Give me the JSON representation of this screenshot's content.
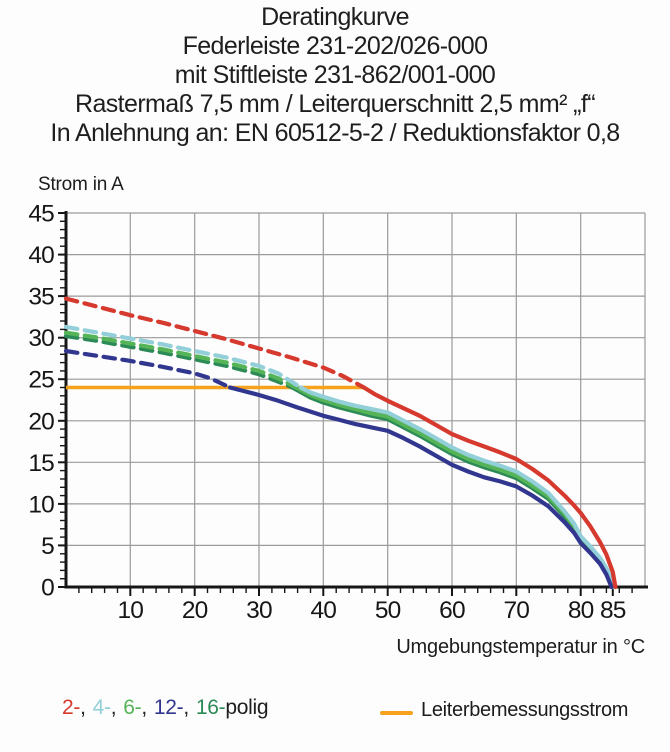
{
  "title": {
    "line1": "Deratingkurve",
    "line2": "Federleiste 231-202/026-000",
    "line3": "mit Stiftleiste 231-862/001-000",
    "line4": "Rastermaß 7,5 mm / Leiterquerschnitt 2,5 mm² „f“",
    "line5": "In Anlehnung an: EN 60512-5-2 / Reduktionsfaktor 0,8"
  },
  "chart_data": {
    "type": "line",
    "title": "Deratingkurve",
    "ylabel": "Strom in A",
    "xlabel": "Umgebungstemperatur in °C",
    "xlim": [
      0,
      90
    ],
    "ylim": [
      0,
      45
    ],
    "x_ticks": [
      10,
      20,
      30,
      40,
      50,
      60,
      70,
      80,
      85
    ],
    "y_ticks": [
      0,
      5,
      10,
      15,
      20,
      25,
      30,
      35,
      40,
      45
    ],
    "x_gridlines": [
      10,
      20,
      30,
      40,
      50,
      60,
      70,
      80,
      90
    ],
    "y_gridlines": [
      5,
      10,
      15,
      20,
      25,
      30,
      35,
      40,
      45
    ],
    "x_minor_step": 2,
    "y_minor_step": 1,
    "grid": true,
    "grid_color": "#9a9a9a",
    "axis_color": "#161616",
    "reference_line": {
      "label": "Leiterbemessungsstrom",
      "value": 24,
      "x_start": 0,
      "x_end": 46.3,
      "color": "#f6a21c"
    },
    "series": [
      {
        "name": "2-polig",
        "color": "#d6392e",
        "dashed": [
          [
            0,
            34.7
          ],
          [
            5,
            33.7
          ],
          [
            10,
            32.7
          ],
          [
            15,
            31.8
          ],
          [
            20,
            30.8
          ],
          [
            25,
            29.8
          ],
          [
            30,
            28.7
          ],
          [
            35,
            27.6
          ],
          [
            40,
            26.4
          ],
          [
            43,
            25.4
          ],
          [
            46.3,
            24.0
          ]
        ],
        "solid": [
          [
            46.3,
            24.0
          ],
          [
            48,
            23.2
          ],
          [
            50,
            22.4
          ],
          [
            52.5,
            21.5
          ],
          [
            55,
            20.6
          ],
          [
            57.5,
            19.5
          ],
          [
            60,
            18.4
          ],
          [
            62.5,
            17.6
          ],
          [
            65,
            16.9
          ],
          [
            67.5,
            16.2
          ],
          [
            70,
            15.4
          ],
          [
            72.5,
            14.2
          ],
          [
            75,
            12.8
          ],
          [
            77.5,
            11.0
          ],
          [
            79,
            9.8
          ],
          [
            80,
            8.9
          ],
          [
            81.5,
            7.3
          ],
          [
            83,
            5.4
          ],
          [
            84,
            3.9
          ],
          [
            85,
            1.8
          ],
          [
            85.4,
            0
          ]
        ]
      },
      {
        "name": "4-polig",
        "color": "#93cfd8",
        "dashed": [
          [
            0,
            31.3
          ],
          [
            5,
            30.6
          ],
          [
            10,
            29.9
          ],
          [
            15,
            29.2
          ],
          [
            20,
            28.4
          ],
          [
            25,
            27.6
          ],
          [
            30,
            26.6
          ],
          [
            33,
            25.7
          ],
          [
            36.5,
            24.0
          ]
        ],
        "solid": [
          [
            36.5,
            24.0
          ],
          [
            38,
            23.4
          ],
          [
            40,
            22.9
          ],
          [
            42.5,
            22.3
          ],
          [
            45,
            21.8
          ],
          [
            47.5,
            21.4
          ],
          [
            50,
            21.0
          ],
          [
            52.5,
            20.0
          ],
          [
            55,
            19.0
          ],
          [
            57.5,
            17.9
          ],
          [
            60,
            16.8
          ],
          [
            62.5,
            15.9
          ],
          [
            65,
            15.2
          ],
          [
            67.5,
            14.6
          ],
          [
            70,
            13.9
          ],
          [
            72.5,
            12.7
          ],
          [
            75,
            11.3
          ],
          [
            77.5,
            9.1
          ],
          [
            79,
            7.6
          ],
          [
            80,
            6.1
          ],
          [
            81.5,
            4.9
          ],
          [
            83,
            3.5
          ],
          [
            84.2,
            2.0
          ],
          [
            85.1,
            0
          ]
        ]
      },
      {
        "name": "6-polig",
        "color": "#55b457",
        "dashed": [
          [
            0,
            30.6
          ],
          [
            5,
            30.0
          ],
          [
            10,
            29.3
          ],
          [
            15,
            28.6
          ],
          [
            20,
            27.8
          ],
          [
            25,
            27.0
          ],
          [
            30,
            26.0
          ],
          [
            33,
            25.1
          ],
          [
            35.8,
            24.0
          ]
        ],
        "solid": [
          [
            35.8,
            24.0
          ],
          [
            38,
            23.1
          ],
          [
            40,
            22.5
          ],
          [
            42.5,
            21.9
          ],
          [
            45,
            21.4
          ],
          [
            47.5,
            20.9
          ],
          [
            50,
            20.5
          ],
          [
            52.5,
            19.5
          ],
          [
            55,
            18.5
          ],
          [
            57.5,
            17.4
          ],
          [
            60,
            16.3
          ],
          [
            62.5,
            15.4
          ],
          [
            65,
            14.7
          ],
          [
            67.5,
            14.1
          ],
          [
            70,
            13.4
          ],
          [
            72.5,
            12.2
          ],
          [
            75,
            10.9
          ],
          [
            77.5,
            8.8
          ],
          [
            79,
            7.3
          ],
          [
            80,
            5.9
          ],
          [
            81.5,
            4.7
          ],
          [
            83,
            3.3
          ],
          [
            84.1,
            1.8
          ],
          [
            85,
            0
          ]
        ]
      },
      {
        "name": "12-polig",
        "color": "#31368f",
        "dashed": [
          [
            0,
            28.4
          ],
          [
            5,
            27.8
          ],
          [
            10,
            27.2
          ],
          [
            15,
            26.5
          ],
          [
            20,
            25.7
          ],
          [
            22.5,
            25.1
          ],
          [
            25.5,
            24.0
          ]
        ],
        "solid": [
          [
            25.5,
            24.0
          ],
          [
            27,
            23.7
          ],
          [
            30,
            23.1
          ],
          [
            33,
            22.4
          ],
          [
            36,
            21.6
          ],
          [
            38,
            21.1
          ],
          [
            40,
            20.6
          ],
          [
            42.5,
            20.1
          ],
          [
            45,
            19.6
          ],
          [
            47.5,
            19.2
          ],
          [
            50,
            18.8
          ],
          [
            52.5,
            17.9
          ],
          [
            55,
            16.9
          ],
          [
            57.5,
            15.8
          ],
          [
            60,
            14.7
          ],
          [
            62.5,
            13.9
          ],
          [
            65,
            13.2
          ],
          [
            67.5,
            12.7
          ],
          [
            70,
            12.1
          ],
          [
            72.5,
            11.0
          ],
          [
            75,
            9.7
          ],
          [
            77.5,
            7.8
          ],
          [
            79,
            6.5
          ],
          [
            80,
            5.3
          ],
          [
            81.5,
            4.1
          ],
          [
            83,
            2.8
          ],
          [
            84,
            1.5
          ],
          [
            84.8,
            0
          ]
        ]
      },
      {
        "name": "16-polig",
        "color": "#2c8a57",
        "dashed": [
          [
            0,
            30.2
          ],
          [
            5,
            29.6
          ],
          [
            10,
            28.9
          ],
          [
            15,
            28.2
          ],
          [
            20,
            27.4
          ],
          [
            25,
            26.6
          ],
          [
            30,
            25.6
          ],
          [
            33,
            24.7
          ],
          [
            35.2,
            24.0
          ]
        ],
        "solid": [
          [
            35.2,
            24.0
          ],
          [
            38,
            22.8
          ],
          [
            40,
            22.2
          ],
          [
            42.5,
            21.6
          ],
          [
            45,
            21.1
          ],
          [
            47.5,
            20.6
          ],
          [
            50,
            20.2
          ],
          [
            52.5,
            19.2
          ],
          [
            55,
            18.2
          ],
          [
            57.5,
            17.1
          ],
          [
            60,
            16.0
          ],
          [
            62.5,
            15.1
          ],
          [
            65,
            14.4
          ],
          [
            67.5,
            13.8
          ],
          [
            70,
            13.1
          ],
          [
            72.5,
            11.9
          ],
          [
            75,
            10.6
          ],
          [
            77.5,
            8.5
          ],
          [
            79,
            7.0
          ],
          [
            80,
            5.6
          ],
          [
            81.5,
            4.4
          ],
          [
            83,
            3.0
          ],
          [
            84,
            1.6
          ],
          [
            84.9,
            0
          ]
        ]
      }
    ],
    "legend_position": "bottom"
  },
  "legend": {
    "items": [
      {
        "label": "2-",
        "color": "#d6392e",
        "series": "2-polig"
      },
      {
        "label": "4-",
        "color": "#93cfd8",
        "series": "4-polig"
      },
      {
        "label": "6-",
        "color": "#55b457",
        "series": "6-polig"
      },
      {
        "label": "12-",
        "color": "#31368f",
        "series": "12-polig"
      },
      {
        "label": "16-",
        "color": "#2c8a57",
        "series": "16-polig"
      }
    ],
    "separator": ",",
    "suffix": "polig"
  }
}
